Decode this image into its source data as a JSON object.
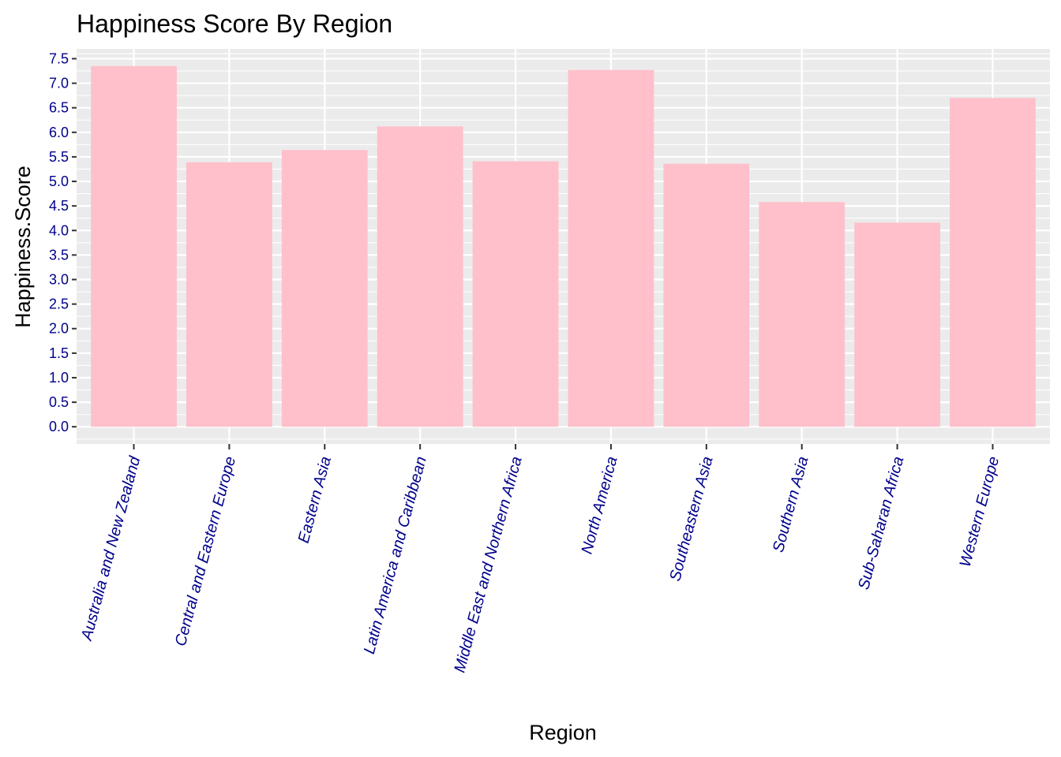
{
  "chart_data": {
    "type": "bar",
    "title": "Happiness Score By Region",
    "xlabel": "Region",
    "ylabel": "Happiness.Score",
    "categories": [
      "Australia and New Zealand",
      "Central and Eastern Europe",
      "Eastern Asia",
      "Latin America and Caribbean",
      "Middle East and Northern Africa",
      "North America",
      "Southeastern Asia",
      "Southern Asia",
      "Sub-Saharan Africa",
      "Western Europe"
    ],
    "values": [
      7.35,
      5.39,
      5.64,
      6.12,
      5.41,
      7.27,
      5.36,
      4.58,
      4.16,
      6.7
    ],
    "ylim": [
      -0.35,
      7.7
    ],
    "yticks": [
      "0.0",
      "0.5",
      "1.0",
      "1.5",
      "2.0",
      "2.5",
      "3.0",
      "3.5",
      "4.0",
      "4.5",
      "5.0",
      "5.5",
      "6.0",
      "6.5",
      "7.0",
      "7.5"
    ],
    "grid": true,
    "colors": {
      "bar": "#ffc0cb",
      "panel": "#ebebeb",
      "grid": "#ffffff",
      "tick_text": "#00008b",
      "tick_mark": "#333333"
    }
  }
}
